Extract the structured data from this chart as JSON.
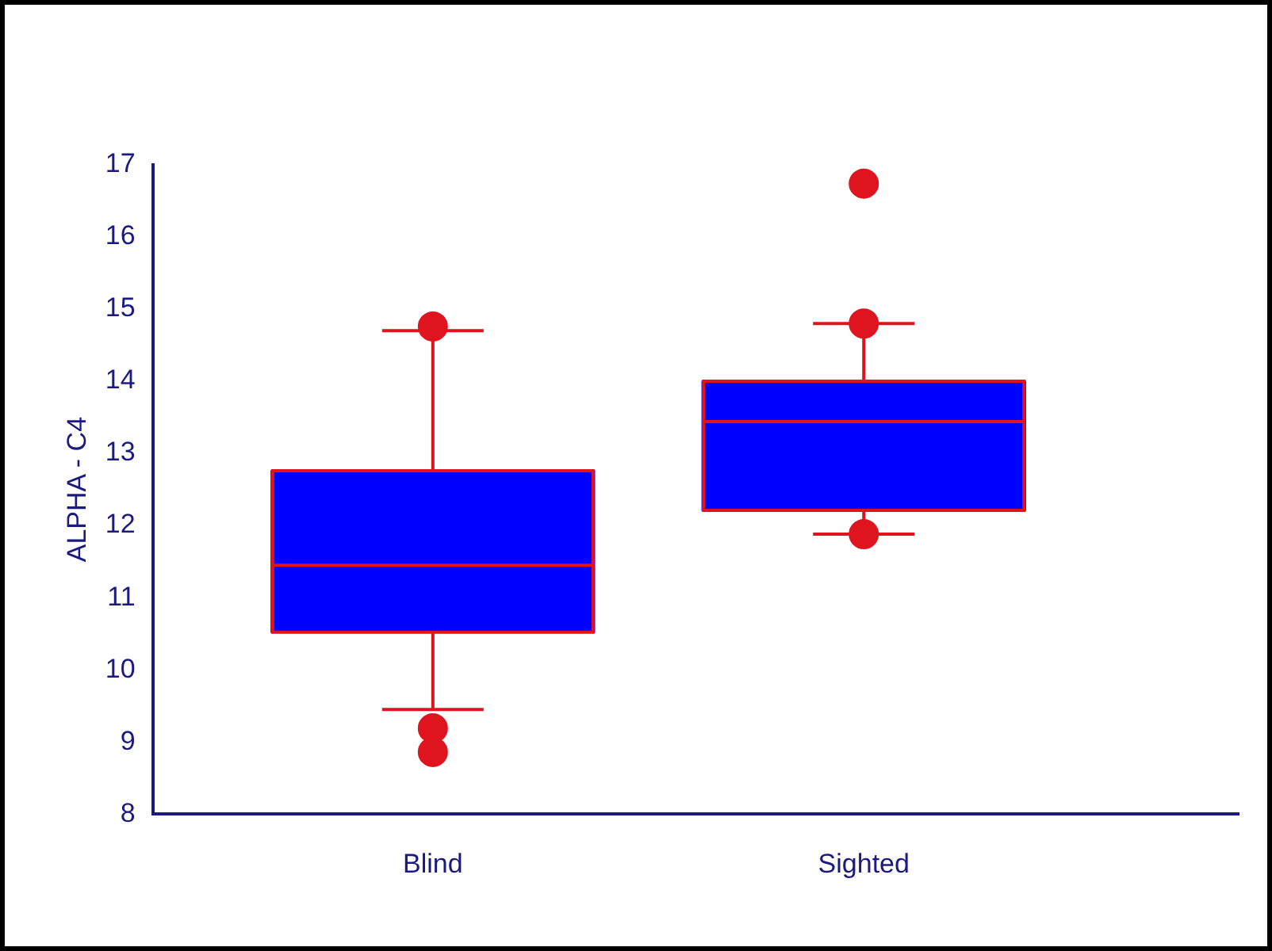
{
  "chart_data": {
    "type": "box",
    "ylabel": "ALPHA - C4",
    "categories": [
      "Blind",
      "Sighted"
    ],
    "series": [
      {
        "color": "#0000ff",
        "boxes": [
          {
            "low": 9.45,
            "q1": 10.52,
            "median": 11.45,
            "q3": 12.76,
            "high": 14.7,
            "outliers": [
              14.76,
              9.19,
              8.86
            ]
          },
          {
            "low": 11.88,
            "q1": 12.21,
            "median": 13.44,
            "q3": 14.0,
            "high": 14.8,
            "outliers": [
              16.74,
              14.8,
              11.88
            ]
          }
        ]
      }
    ],
    "ylim": [
      8,
      17
    ],
    "yticks": [
      8,
      9,
      10,
      11,
      12,
      13,
      14,
      15,
      16,
      17
    ],
    "grid": false,
    "legend": false,
    "marker": "circle"
  }
}
